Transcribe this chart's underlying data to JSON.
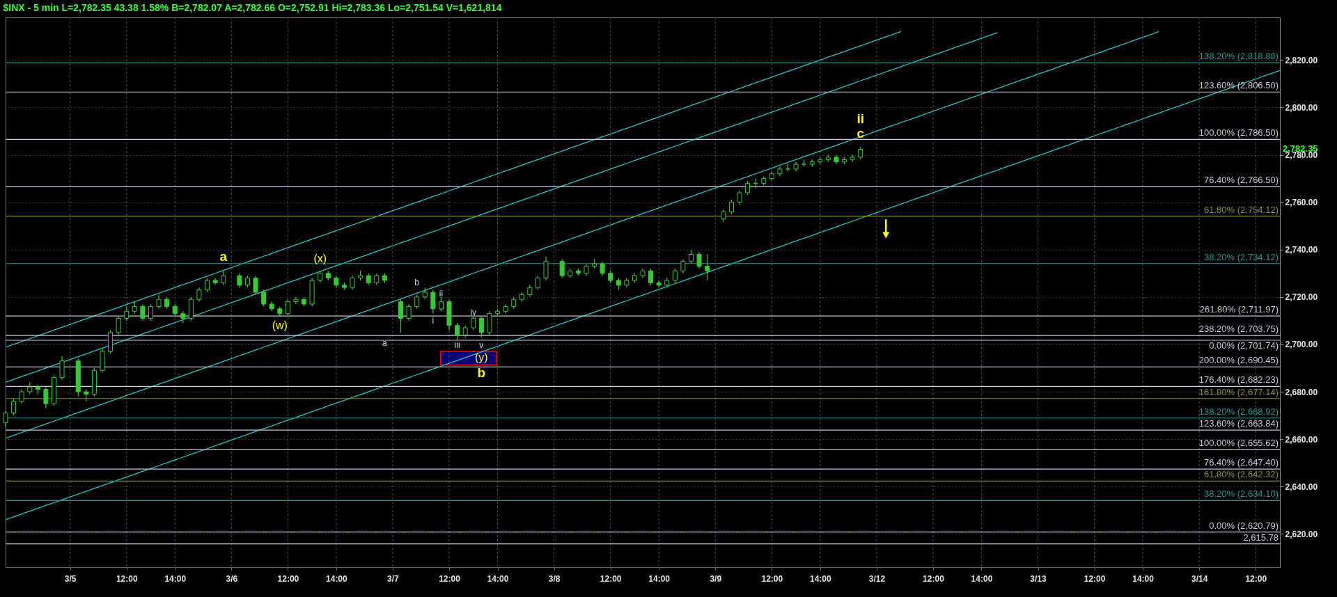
{
  "chart_data": {
    "type": "candlestick",
    "title": "$INX - 5 min L=2,782.35 43.38 1.58% B=2,782.07 A=2,782.66 O=2,752.91 Hi=2,783.36 Lo=2,751.54 V=1,621,814",
    "color": "#33cc33",
    "grid": true,
    "categories": [
      null,
      null,
      null,
      null,
      null,
      null,
      null,
      null,
      "3/5",
      null,
      null,
      null,
      null,
      null,
      null,
      "12:00",
      null,
      null,
      null,
      null,
      null,
      "14:00",
      null,
      null,
      null,
      null,
      null,
      null,
      "3/6",
      null,
      null,
      null,
      null,
      null,
      null,
      "12:00",
      null,
      null,
      null,
      null,
      null,
      "14:00",
      null,
      null,
      null,
      null,
      null,
      null,
      "3/7",
      null,
      null,
      null,
      null,
      null,
      null,
      "12:00",
      null,
      null,
      null,
      null,
      null,
      "14:00",
      null,
      null,
      null,
      null,
      null,
      null,
      "3/8",
      null,
      null,
      null,
      null,
      null,
      null,
      "12:00",
      null,
      null,
      null,
      null,
      null,
      "14:00",
      null,
      null,
      null,
      null,
      null,
      null,
      "3/9",
      null,
      null,
      null,
      null,
      null,
      null,
      "12:00",
      null,
      null,
      null,
      null,
      null,
      "14:00",
      null,
      null,
      null,
      null,
      null,
      null,
      "3/12",
      null,
      null,
      null,
      null,
      null,
      null,
      "12:00",
      null,
      null,
      null,
      null,
      null,
      "14:00",
      null,
      null,
      null,
      null,
      null,
      null,
      "3/13",
      null,
      null,
      null,
      null,
      null,
      null,
      "12:00",
      null,
      null,
      null,
      null,
      null,
      "14:00",
      null,
      null,
      null,
      null,
      null,
      null,
      "3/14",
      null,
      null,
      null,
      null,
      null,
      null,
      "12:00",
      null,
      null,
      null
    ],
    "ohlc": [
      [
        2667,
        2672,
        2665,
        2671
      ],
      [
        2671,
        2677,
        2670,
        2676
      ],
      [
        2676,
        2681,
        2675,
        2680
      ],
      [
        2680,
        2684,
        2679,
        2682
      ],
      [
        2682,
        2683,
        2679,
        2681
      ],
      [
        2681,
        2682,
        2673,
        2675
      ],
      [
        2675,
        2687,
        2674,
        2686
      ],
      [
        2686,
        2695,
        2685,
        2693
      ],
      null,
      [
        2693,
        2694,
        2678,
        2680
      ],
      [
        2680,
        2681,
        2676,
        2679
      ],
      [
        2679,
        2690,
        2678,
        2689
      ],
      [
        2689,
        2698,
        2688,
        2697
      ],
      [
        2697,
        2706,
        2696,
        2705
      ],
      [
        2705,
        2712,
        2704,
        2711
      ],
      [
        2711,
        2716,
        2710,
        2714
      ],
      [
        2714,
        2718,
        2713,
        2716
      ],
      [
        2716,
        2717,
        2710,
        2711
      ],
      [
        2711,
        2717,
        2710,
        2716
      ],
      [
        2716,
        2721,
        2715,
        2719
      ],
      [
        2719,
        2720,
        2715,
        2716
      ],
      [
        2716,
        2717,
        2712,
        2713
      ],
      [
        2713,
        2714,
        2709,
        2711
      ],
      [
        2711,
        2720,
        2710,
        2719
      ],
      [
        2719,
        2724,
        2718,
        2723
      ],
      [
        2723,
        2728,
        2722,
        2727
      ],
      [
        2727,
        2728,
        2725,
        2726
      ],
      [
        2726,
        2731,
        2725,
        2729
      ],
      null,
      [
        2729,
        2730,
        2724,
        2725
      ],
      [
        2725,
        2729,
        2724,
        2728
      ],
      [
        2728,
        2729,
        2721,
        2722
      ],
      [
        2722,
        2723,
        2716,
        2717
      ],
      [
        2717,
        2718,
        2714,
        2715
      ],
      [
        2715,
        2716,
        2712,
        2713
      ],
      [
        2713,
        2719,
        2712,
        2718
      ],
      [
        2718,
        2720,
        2717,
        2719
      ],
      [
        2719,
        2720,
        2716,
        2717
      ],
      [
        2717,
        2728,
        2716,
        2727
      ],
      [
        2727,
        2731,
        2726,
        2730
      ],
      [
        2730,
        2731,
        2727,
        2728
      ],
      [
        2728,
        2729,
        2724,
        2725
      ],
      [
        2725,
        2726,
        2723,
        2724
      ],
      [
        2724,
        2729,
        2723,
        2728
      ],
      [
        2728,
        2731,
        2727,
        2729
      ],
      [
        2729,
        2730,
        2725,
        2726
      ],
      [
        2726,
        2730,
        2725,
        2729
      ],
      [
        2729,
        2730,
        2726,
        2727
      ],
      null,
      [
        2718,
        2719,
        2705,
        2711
      ],
      [
        2711,
        2717,
        2710,
        2716
      ],
      [
        2716,
        2721,
        2715,
        2720
      ],
      [
        2720,
        2724,
        2719,
        2722
      ],
      [
        2722,
        2723,
        2713,
        2715
      ],
      [
        2715,
        2720,
        2714,
        2718
      ],
      [
        2718,
        2719,
        2706,
        2708
      ],
      [
        2708,
        2709,
        2702,
        2704
      ],
      [
        2704,
        2708,
        2703,
        2707
      ],
      [
        2707,
        2712,
        2706,
        2711
      ],
      [
        2711,
        2712,
        2703,
        2705
      ],
      [
        2705,
        2714,
        2704,
        2713
      ],
      [
        2713,
        2715,
        2712,
        2714
      ],
      [
        2714,
        2717,
        2713,
        2716
      ],
      [
        2716,
        2720,
        2715,
        2719
      ],
      [
        2719,
        2722,
        2718,
        2721
      ],
      [
        2721,
        2725,
        2720,
        2724
      ],
      [
        2724,
        2729,
        2723,
        2728
      ],
      [
        2728,
        2737,
        2727,
        2735
      ],
      null,
      [
        2735,
        2736,
        2728,
        2729
      ],
      [
        2729,
        2732,
        2728,
        2731
      ],
      [
        2731,
        2732,
        2729,
        2730
      ],
      [
        2730,
        2734,
        2729,
        2733
      ],
      [
        2733,
        2736,
        2732,
        2734
      ],
      [
        2734,
        2735,
        2729,
        2730
      ],
      [
        2730,
        2731,
        2726,
        2727
      ],
      [
        2727,
        2728,
        2723,
        2725
      ],
      [
        2725,
        2728,
        2724,
        2727
      ],
      [
        2727,
        2730,
        2726,
        2729
      ],
      [
        2729,
        2732,
        2728,
        2731
      ],
      [
        2731,
        2732,
        2725,
        2726
      ],
      [
        2726,
        2727,
        2724,
        2725
      ],
      [
        2725,
        2728,
        2724,
        2727
      ],
      [
        2727,
        2732,
        2726,
        2731
      ],
      [
        2731,
        2736,
        2730,
        2735
      ],
      [
        2735,
        2740,
        2734,
        2738
      ],
      [
        2738,
        2739,
        2732,
        2733
      ],
      [
        2733,
        2738,
        2727,
        2731
      ],
      null,
      [
        2752.91,
        2757,
        2751.54,
        2756
      ],
      [
        2756,
        2761,
        2755,
        2760
      ],
      [
        2760,
        2765,
        2759,
        2764
      ],
      [
        2764,
        2769,
        2763,
        2768
      ],
      [
        2768,
        2770,
        2766,
        2768
      ],
      [
        2768,
        2771,
        2767,
        2770
      ],
      [
        2770,
        2773,
        2769,
        2772
      ],
      [
        2772,
        2775,
        2771,
        2774
      ],
      [
        2774,
        2776,
        2773,
        2774
      ],
      [
        2774,
        2777,
        2773,
        2776
      ],
      [
        2776,
        2778,
        2775,
        2776
      ],
      [
        2776,
        2778,
        2775,
        2777
      ],
      [
        2777,
        2779,
        2776,
        2778
      ],
      [
        2778,
        2780,
        2777,
        2779
      ],
      [
        2779,
        2780,
        2776,
        2777
      ],
      [
        2777,
        2779,
        2776,
        2778
      ],
      [
        2778,
        2780,
        2777,
        2779
      ],
      [
        2779,
        2783.36,
        2778,
        2782.35
      ],
      null,
      null,
      null,
      null,
      null,
      null,
      null,
      null,
      null,
      null,
      null,
      null,
      null,
      null,
      null,
      null,
      null,
      null,
      null,
      null,
      null,
      null,
      null,
      null,
      null,
      null,
      null,
      null,
      null,
      null,
      null,
      null,
      null,
      null,
      null,
      null,
      null,
      null,
      null,
      null,
      null,
      null,
      null,
      null,
      null,
      null,
      null,
      null,
      null,
      null,
      null,
      null
    ],
    "series": [
      {
        "type": "line",
        "color": "#22c4c4",
        "values": [
          2698.8,
          2700,
          2701.2,
          2702.4,
          2703.6,
          2704.8,
          2706,
          2707.2,
          2708.4,
          2709.6,
          2710.8,
          2712,
          2713.2,
          2714.4,
          2715.6,
          2716.8,
          2718,
          2719.2,
          2720.4,
          2721.6,
          2722.8,
          2724,
          2725.2,
          2726.4,
          2727.6,
          2728.8,
          2730,
          2731.2,
          2732.4,
          2733.6,
          2734.8,
          2736,
          2737.2,
          2738.4,
          2739.6,
          2740.8,
          2742,
          2743.2,
          2744.4,
          2745.6,
          2746.8,
          2748,
          2749.2,
          2750.4,
          2751.6,
          2752.8,
          2754,
          2755.2,
          2756.4,
          2757.6,
          2758.8,
          2760,
          2761.2,
          2762.4,
          2763.6,
          2764.8,
          2766,
          2767.2,
          2768.4,
          2769.6,
          2770.8,
          2772,
          2773.2,
          2774.4,
          2775.6,
          2776.8,
          2778,
          2779.2,
          2780.4,
          2781.6,
          2782.8,
          2784,
          2785.2,
          2786.4,
          2787.6,
          2788.8,
          2790,
          2791.2,
          2792.4,
          2793.6,
          2794.8,
          2796,
          2797.2,
          2798.4,
          2799.6,
          2800.8,
          2802,
          2803.2,
          2804.4,
          2805.6,
          2806.8,
          2808,
          2809.2,
          2810.4,
          2811.6,
          2812.8,
          2814,
          2815.2,
          2816.4,
          2817.6,
          2818.8,
          2820,
          2821.2,
          2822.4,
          2823.6,
          2824.8,
          2826,
          2827.2,
          2828.4,
          2829.6,
          2830.8,
          2832,
          null,
          null,
          null,
          null,
          null,
          null,
          null,
          null,
          null,
          null,
          null,
          null,
          null,
          null,
          null,
          null,
          null,
          null,
          null,
          null,
          null,
          null,
          null,
          null,
          null,
          null,
          null,
          null,
          null,
          null,
          null,
          null,
          null,
          null,
          null,
          null,
          null,
          null,
          null,
          null,
          null,
          null,
          null,
          null,
          null,
          null,
          null
        ]
      },
      {
        "type": "line",
        "color": "#22c4c4",
        "values": [
          2684,
          2685.2,
          2686.4,
          2687.6,
          2688.8,
          2690,
          2691.2,
          2692.4,
          2693.6,
          2694.8,
          2696,
          2697.2,
          2698.4,
          2699.6,
          2700.8,
          2702,
          2703.2,
          2704.4,
          2705.6,
          2706.8,
          2708,
          2709.2,
          2710.4,
          2711.6,
          2712.8,
          2714,
          2715.2,
          2716.4,
          2717.6,
          2718.8,
          2720,
          2721.2,
          2722.4,
          2723.6,
          2724.8,
          2726,
          2727.2,
          2728.4,
          2729.6,
          2730.8,
          2732,
          2733.2,
          2734.4,
          2735.6,
          2736.8,
          2738,
          2739.2,
          2740.4,
          2741.6,
          2742.8,
          2744,
          2745.2,
          2746.4,
          2747.6,
          2748.8,
          2750,
          2751.2,
          2752.4,
          2753.6,
          2754.8,
          2756,
          2757.2,
          2758.4,
          2759.6,
          2760.8,
          2762,
          2763.2,
          2764.4,
          2765.6,
          2766.8,
          2768,
          2769.2,
          2770.4,
          2771.6,
          2772.8,
          2774,
          2775.2,
          2776.4,
          2777.6,
          2778.8,
          2780,
          2781.2,
          2782.4,
          2783.6,
          2784.8,
          2786,
          2787.2,
          2788.4,
          2789.6,
          2790.8,
          2792,
          2793.2,
          2794.4,
          2795.6,
          2796.8,
          2798,
          2799.2,
          2800.4,
          2801.6,
          2802.8,
          2804,
          2805.2,
          2806.4,
          2807.6,
          2808.8,
          2810,
          2811.2,
          2812.4,
          2813.6,
          2814.8,
          2816,
          2817.2,
          2818.4,
          2819.6,
          2820.8,
          2822,
          2823.2,
          2824.4,
          2825.6,
          2826.8,
          2828,
          2829.2,
          2830.4,
          2831.6,
          null,
          null,
          null,
          null,
          null,
          null,
          null,
          null,
          null,
          null,
          null,
          null,
          null,
          null,
          null,
          null,
          null,
          null,
          null,
          null,
          null,
          null,
          null,
          null,
          null,
          null,
          null,
          null,
          null,
          null,
          null,
          null,
          null,
          null,
          null
        ]
      },
      {
        "type": "line",
        "color": "#22c4c4",
        "values": [
          2660.4,
          2661.6,
          2662.8,
          2664,
          2665.2,
          2666.4,
          2667.6,
          2668.8,
          2670,
          2671.2,
          2672.4,
          2673.6,
          2674.8,
          2676,
          2677.2,
          2678.4,
          2679.6,
          2680.8,
          2682,
          2683.2,
          2684.4,
          2685.6,
          2686.8,
          2688,
          2689.2,
          2690.4,
          2691.6,
          2692.8,
          2694,
          2695.2,
          2696.4,
          2697.6,
          2698.8,
          2700,
          2701.2,
          2702.4,
          2703.6,
          2704.8,
          2706,
          2707.2,
          2708.4,
          2709.6,
          2710.8,
          2712,
          2713.2,
          2714.4,
          2715.6,
          2716.8,
          2718,
          2719.2,
          2720.4,
          2721.6,
          2722.8,
          2724,
          2725.2,
          2726.4,
          2727.6,
          2728.8,
          2730,
          2731.2,
          2732.4,
          2733.6,
          2734.8,
          2736,
          2737.2,
          2738.4,
          2739.6,
          2740.8,
          2742,
          2743.2,
          2744.4,
          2745.6,
          2746.8,
          2748,
          2749.2,
          2750.4,
          2751.6,
          2752.8,
          2754,
          2755.2,
          2756.4,
          2757.6,
          2758.8,
          2760,
          2761.2,
          2762.4,
          2763.6,
          2764.8,
          2766,
          2767.2,
          2768.4,
          2769.6,
          2770.8,
          2772,
          2773.2,
          2774.4,
          2775.6,
          2776.8,
          2778,
          2779.2,
          2780.4,
          2781.6,
          2782.8,
          2784,
          2785.2,
          2786.4,
          2787.6,
          2788.8,
          2790,
          2791.2,
          2792.4,
          2793.6,
          2794.8,
          2796,
          2797.2,
          2798.4,
          2799.6,
          2800.8,
          2802,
          2803.2,
          2804.4,
          2805.6,
          2806.8,
          2808,
          2809.2,
          2810.4,
          2811.6,
          2812.8,
          2814,
          2815.2,
          2816.4,
          2817.6,
          2818.8,
          2820,
          2821.2,
          2822.4,
          2823.6,
          2824.8,
          2826,
          2827.2,
          2828.4,
          2829.6,
          2830.8,
          2832,
          null,
          null,
          null,
          null,
          null,
          null,
          null,
          null,
          null,
          null,
          null,
          null,
          null,
          null,
          null
        ]
      },
      {
        "type": "line",
        "color": "#22c4c4",
        "values": [
          2626,
          2627.2,
          2628.4,
          2629.6,
          2630.8,
          2632,
          2633.2,
          2634.4,
          2635.6,
          2636.8,
          2638,
          2639.2,
          2640.4,
          2641.6,
          2642.8,
          2644,
          2645.2,
          2646.4,
          2647.6,
          2648.8,
          2650,
          2651.2,
          2652.4,
          2653.6,
          2654.8,
          2656,
          2657.2,
          2658.4,
          2659.6,
          2660.8,
          2662,
          2663.2,
          2664.4,
          2665.6,
          2666.8,
          2668,
          2669.2,
          2670.4,
          2671.6,
          2672.8,
          2674,
          2675.2,
          2676.4,
          2677.6,
          2678.8,
          2680,
          2681.2,
          2682.4,
          2683.6,
          2684.8,
          2686,
          2687.2,
          2688.4,
          2689.6,
          2690.8,
          2692,
          2693.2,
          2694.4,
          2695.6,
          2696.8,
          2698,
          2699.2,
          2700.4,
          2701.6,
          2702.8,
          2704,
          2705.2,
          2706.4,
          2707.6,
          2708.8,
          2710,
          2711.2,
          2712.4,
          2713.6,
          2714.8,
          2716,
          2717.2,
          2718.4,
          2719.6,
          2720.8,
          2722,
          2723.2,
          2724.4,
          2725.6,
          2726.8,
          2728,
          2729.2,
          2730.4,
          2731.6,
          2732.8,
          2734,
          2735.2,
          2736.4,
          2737.6,
          2738.8,
          2740,
          2741.2,
          2742.4,
          2743.6,
          2744.8,
          2746,
          2747.2,
          2748.4,
          2749.6,
          2750.8,
          2752,
          2753.2,
          2754.4,
          2755.6,
          2756.8,
          2758,
          2759.2,
          2760.4,
          2761.6,
          2762.8,
          2764,
          2765.2,
          2766.4,
          2767.6,
          2768.8,
          2770,
          2771.2,
          2772.4,
          2773.6,
          2774.8,
          2776,
          2777.2,
          2778.4,
          2779.6,
          2780.8,
          2782,
          2783.2,
          2784.4,
          2785.6,
          2786.8,
          2788,
          2789.2,
          2790.4,
          2791.6,
          2792.8,
          2794,
          2795.2,
          2796.4,
          2797.6,
          2798.8,
          2800,
          2801.2,
          2802.4,
          2803.6,
          2804.8,
          2806,
          2807.2,
          2808.4,
          2809.6,
          2810.8,
          2812,
          2813.2,
          2814.4,
          2815.6
        ]
      }
    ],
    "ylim": [
      2606,
      2838
    ],
    "yticks": [
      {
        "value": 2620,
        "label": "2,620.00"
      },
      {
        "value": 2640,
        "label": "2,640.00"
      },
      {
        "value": 2660,
        "label": "2,660.00"
      },
      {
        "value": 2680,
        "label": "2,680.00"
      },
      {
        "value": 2700,
        "label": "2,700.00"
      },
      {
        "value": 2720,
        "label": "2,720.00"
      },
      {
        "value": 2740,
        "label": "2,740.00"
      },
      {
        "value": 2760,
        "label": "2,760.00"
      },
      {
        "value": 2780,
        "label": "2,780.00"
      },
      {
        "value": 2800,
        "label": "2,800.00"
      },
      {
        "value": 2820,
        "label": "2,820.00"
      }
    ],
    "ref_lines": [
      {
        "axis": "y",
        "value": 2818.88,
        "label": "138.20% (2,818.88)",
        "color": "#1e9696"
      },
      {
        "axis": "y",
        "value": 2806.5,
        "label": "123.60% (2,806.50)",
        "color": "#c8c8dc"
      },
      {
        "axis": "y",
        "value": 2786.5,
        "label": "100.00% (2,786.50)",
        "color": "#c8c8dc"
      },
      {
        "axis": "y",
        "value": 2766.5,
        "label": "76.40% (2,766.50)",
        "color": "#c8c8dc"
      },
      {
        "axis": "y",
        "value": 2754.12,
        "label": "61.80% (2,754.12)",
        "color": "#8c8c28"
      },
      {
        "axis": "y",
        "value": 2734.12,
        "label": "38.20% (2,734.12)",
        "color": "#1e9696"
      },
      {
        "axis": "y",
        "value": 2711.97,
        "label": "261.80% (2,711.97)",
        "color": "#c8c8dc"
      },
      {
        "axis": "y",
        "value": 2703.75,
        "label": "238.20% (2,703.75)",
        "color": "#c8c8dc"
      },
      {
        "axis": "y",
        "value": 2701.74,
        "label": "0.00% (2,701.74)",
        "color": "#c8c8dc"
      },
      {
        "axis": "y",
        "value": 2690.45,
        "label": "200.00% (2,690.45)",
        "color": "#c8c8dc"
      },
      {
        "axis": "y",
        "value": 2682.23,
        "label": "176.40% (2,682.23)",
        "color": "#c8c8dc"
      },
      {
        "axis": "y",
        "value": 2677.14,
        "label": "161.80% (2,677.14)",
        "color": "#8c8c28"
      },
      {
        "axis": "y",
        "value": 2668.92,
        "label": "138.20% (2,668.92)",
        "color": "#1e9696"
      },
      {
        "axis": "y",
        "value": 2663.84,
        "label": "123.60% (2,663.84)",
        "color": "#c8c8dc"
      },
      {
        "axis": "y",
        "value": 2655.62,
        "label": "100.00% (2,655.62)",
        "color": "#c8c8dc"
      },
      {
        "axis": "y",
        "value": 2647.4,
        "label": "76.40% (2,647.40)",
        "color": "#c8c8dc"
      },
      {
        "axis": "y",
        "value": 2642.32,
        "label": "61.80% (2,642.32)",
        "color": "#8c8c28"
      },
      {
        "axis": "y",
        "value": 2634.1,
        "label": "38.20% (2,634.10)",
        "color": "#1e9696"
      },
      {
        "axis": "y",
        "value": 2620.79,
        "label": "0.00% (2,620.79)",
        "color": "#c8c8dc"
      },
      {
        "axis": "y",
        "value": 2615.78,
        "label": "2,615.78",
        "color": "#c8c8dc"
      }
    ],
    "annotations": [
      "a",
      "(w)",
      "(x)",
      "a",
      "b",
      "i",
      "ii",
      "iii",
      "iv",
      "v",
      "(y)",
      "b",
      "c",
      "ii",
      "2,782.35"
    ]
  }
}
